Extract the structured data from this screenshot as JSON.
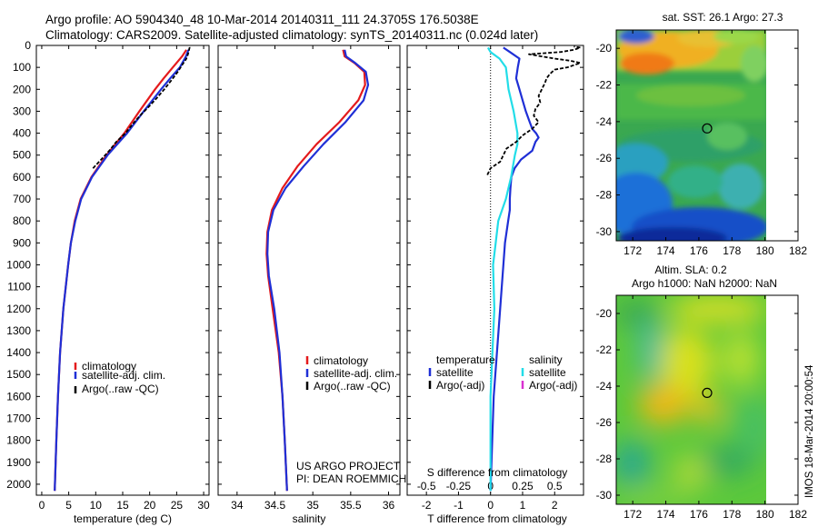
{
  "header": {
    "line1": "Argo profile: AO 5904340_48 10-Mar-2014 20140311_111 24.3705S 176.5038E",
    "line2": "Climatology: CARS2009. Satellite-adjusted climatology: synTS_20140311.nc (0.024d later)"
  },
  "colors": {
    "climatology": "#e41a1c",
    "satellite": "#1f2fd6",
    "argo": "#000000",
    "salinity_satellite": "#22dde8",
    "salinity_argo": "#d930d0"
  },
  "credit": {
    "line1": "US ARGO PROJECT",
    "line2": "PI: DEAN ROEMMICH"
  },
  "side_stamp": "IMOS 18-Mar-2014 20:00:54",
  "chart_data": [
    {
      "type": "line",
      "xlabel": "temperature (deg C)",
      "ylabel": "",
      "xlim": [
        -1,
        31
      ],
      "ylim": [
        2050,
        0
      ],
      "xticks": [
        0,
        5,
        10,
        15,
        20,
        25,
        30
      ],
      "yticks": [
        0,
        100,
        200,
        300,
        400,
        500,
        600,
        700,
        800,
        900,
        1000,
        1100,
        1200,
        1300,
        1400,
        1500,
        1600,
        1700,
        1800,
        1900,
        2000
      ],
      "legend_position": "lower-center",
      "series": [
        {
          "name": "climatology",
          "color_key": "climatology",
          "dash": false,
          "depth": [
            2030,
            1800,
            1600,
            1400,
            1200,
            1000,
            900,
            800,
            700,
            600,
            500,
            400,
            300,
            200,
            150,
            100,
            50,
            20
          ],
          "values": [
            2.4,
            2.7,
            3.0,
            3.4,
            4.0,
            4.9,
            5.4,
            6.1,
            7.2,
            9.2,
            12.0,
            15.3,
            18.1,
            21.0,
            22.6,
            24.3,
            26.0,
            26.8
          ]
        },
        {
          "name": "satellite-adj. clim.",
          "color_key": "satellite",
          "dash": false,
          "depth": [
            2030,
            1800,
            1600,
            1400,
            1200,
            1000,
            900,
            800,
            700,
            600,
            500,
            400,
            300,
            200,
            150,
            100,
            50,
            20
          ],
          "values": [
            2.4,
            2.7,
            3.0,
            3.4,
            4.0,
            4.9,
            5.4,
            6.2,
            7.3,
            9.3,
            12.2,
            15.8,
            18.9,
            22.1,
            23.8,
            25.6,
            26.7,
            27.2
          ]
        },
        {
          "name": "Argo(..raw -QC)",
          "color_key": "argo",
          "dash": true,
          "depth": [
            560,
            520,
            480,
            440,
            400,
            360,
            320,
            280,
            240,
            200,
            160,
            120,
            90,
            60,
            40,
            20,
            10,
            5
          ],
          "values": [
            9.5,
            11.0,
            12.5,
            13.8,
            15.5,
            16.8,
            18.2,
            19.8,
            21.3,
            22.7,
            24.0,
            25.2,
            26.0,
            26.8,
            27.1,
            27.3,
            27.4,
            27.3
          ]
        }
      ]
    },
    {
      "type": "line",
      "xlabel": "salinity",
      "ylabel": "",
      "xlim": [
        33.75,
        36.15
      ],
      "ylim": [
        2050,
        0
      ],
      "xticks": [
        34,
        34.5,
        35,
        35.5,
        36
      ],
      "legend_position": "lower-center",
      "series": [
        {
          "name": "climatology",
          "color_key": "climatology",
          "dash": false,
          "depth": [
            2030,
            1800,
            1600,
            1400,
            1200,
            1050,
            950,
            850,
            750,
            650,
            550,
            450,
            350,
            250,
            180,
            120,
            80,
            50,
            20
          ],
          "values": [
            34.66,
            34.63,
            34.6,
            34.55,
            34.47,
            34.41,
            34.39,
            34.4,
            34.46,
            34.6,
            34.8,
            35.05,
            35.35,
            35.6,
            35.69,
            35.68,
            35.55,
            35.42,
            35.4
          ]
        },
        {
          "name": "satellite-adj. clim.",
          "color_key": "satellite",
          "dash": false,
          "depth": [
            2030,
            1800,
            1600,
            1400,
            1200,
            1050,
            950,
            850,
            750,
            650,
            550,
            450,
            350,
            250,
            180,
            120,
            80,
            50,
            20
          ],
          "values": [
            34.66,
            34.63,
            34.6,
            34.56,
            34.49,
            34.42,
            34.4,
            34.41,
            34.48,
            34.64,
            34.88,
            35.14,
            35.43,
            35.67,
            35.73,
            35.7,
            35.56,
            35.44,
            35.42
          ]
        }
      ]
    },
    {
      "type": "line",
      "xlabel": "T difference from climatology",
      "xlabel2": "S difference from climatology",
      "xlim": [
        -2.6,
        2.9
      ],
      "x2lim": [
        -0.65,
        0.725
      ],
      "ylim": [
        2050,
        0
      ],
      "xticks": [
        -2,
        -1,
        0,
        1,
        2
      ],
      "x2ticks": [
        -0.5,
        -0.25,
        0,
        0.25,
        0.5
      ],
      "x2ticklabels": [
        "-0.5",
        "-0.25",
        "0",
        "0.25",
        "0.5"
      ],
      "legend_position": "lower-center",
      "legend_headers": [
        "temperature",
        "salinity"
      ],
      "series": [
        {
          "name": "satellite",
          "group": "temperature",
          "color_key": "satellite",
          "dash": false,
          "depth": [
            2030,
            1600,
            1200,
            900,
            800,
            750,
            700,
            650,
            600,
            560,
            520,
            480,
            440,
            420,
            400,
            380,
            340,
            300,
            250,
            200,
            150,
            100,
            60,
            30,
            10
          ],
          "values": [
            0.0,
            0.1,
            0.3,
            0.45,
            0.55,
            0.6,
            0.6,
            0.62,
            0.65,
            0.75,
            0.95,
            1.3,
            1.4,
            1.5,
            1.42,
            1.3,
            1.2,
            1.1,
            1.0,
            0.9,
            0.8,
            0.85,
            0.9,
            0.6,
            0.4
          ]
        },
        {
          "name": "satellite",
          "group": "salinity",
          "color_key": "salinity_satellite",
          "dash": false,
          "depth": [
            2030,
            1600,
            1200,
            1000,
            900,
            800,
            700,
            600,
            500,
            450,
            400,
            300,
            200,
            150,
            100,
            60,
            30,
            10
          ],
          "values": [
            0.0,
            0.0,
            0.03,
            0.02,
            0.04,
            0.06,
            0.12,
            0.16,
            0.19,
            0.21,
            0.21,
            0.18,
            0.14,
            0.13,
            0.12,
            0.07,
            0.0,
            -0.02
          ]
        },
        {
          "name": "Argo(-adj)",
          "group": "temperature",
          "color_key": "argo",
          "dash": true,
          "depth": [
            590,
            560,
            530,
            500,
            470,
            440,
            410,
            380,
            350,
            320,
            290,
            260,
            230,
            200,
            170,
            150,
            130,
            110,
            100,
            90,
            80,
            70,
            60,
            50,
            40,
            30,
            20,
            10,
            5
          ],
          "values": [
            -0.1,
            0.0,
            0.3,
            0.4,
            0.5,
            0.8,
            1.0,
            1.3,
            1.5,
            1.35,
            1.4,
            1.55,
            1.5,
            1.6,
            1.7,
            1.75,
            1.85,
            2.0,
            2.4,
            2.6,
            2.8,
            2.5,
            2.0,
            1.6,
            1.2,
            2.2,
            2.6,
            2.8,
            2.6
          ]
        },
        {
          "name": "Argo(-adj)",
          "group": "salinity",
          "color_key": "salinity_argo",
          "dash": false,
          "depth": [],
          "values": []
        }
      ]
    },
    {
      "type": "heatmap",
      "title": "sat. SST: 26.1  Argo: 27.3",
      "xlim": [
        171,
        182
      ],
      "ylim": [
        -30.5,
        -19
      ],
      "xticks": [
        172,
        174,
        176,
        178,
        180,
        182
      ],
      "yticks": [
        -20,
        -22,
        -24,
        -26,
        -28,
        -30
      ],
      "marker": {
        "lon": 176.5,
        "lat": -24.37
      }
    },
    {
      "type": "heatmap",
      "title": "Altim. SLA: 0.2",
      "subtitle": "Argo h1000: NaN h2000: NaN",
      "xlim": [
        171,
        182
      ],
      "ylim": [
        -30.5,
        -19
      ],
      "xticks": [
        172,
        174,
        176,
        178,
        180,
        182
      ],
      "yticks": [
        -20,
        -22,
        -24,
        -26,
        -28,
        -30
      ],
      "marker": {
        "lon": 176.5,
        "lat": -24.37
      }
    }
  ]
}
